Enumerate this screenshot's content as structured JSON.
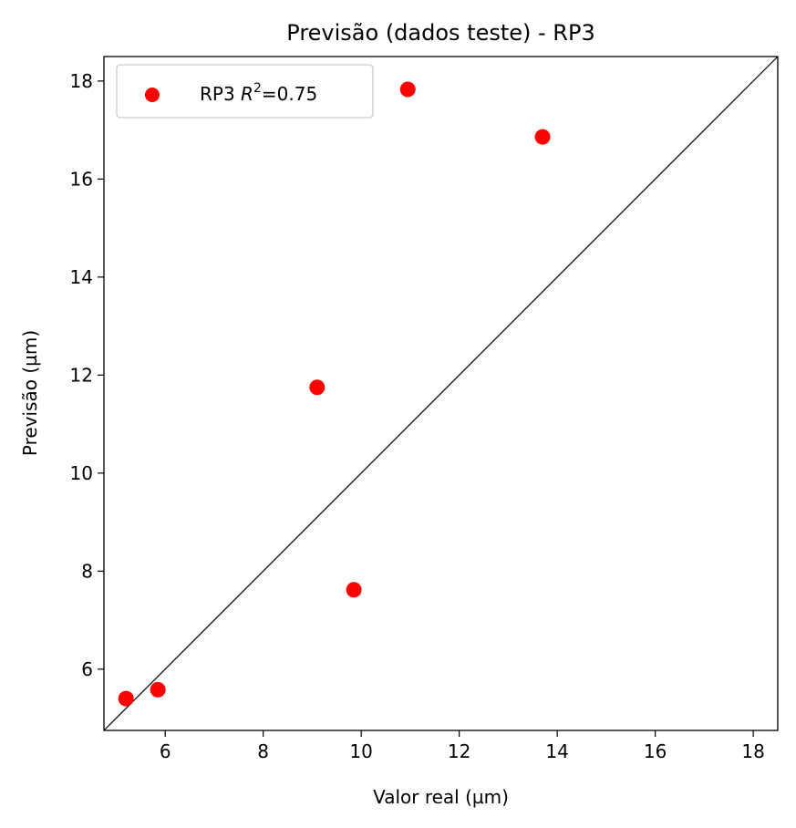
{
  "chart_data": {
    "type": "scatter",
    "title": "Previsão (dados teste) - RP3",
    "xlabel": "Valor real (µm)",
    "ylabel": "Previsão (µm)",
    "xlim": [
      4.75,
      18.5
    ],
    "ylim": [
      4.75,
      18.5
    ],
    "xticks": [
      6,
      8,
      10,
      12,
      14,
      16,
      18
    ],
    "yticks": [
      6,
      8,
      10,
      12,
      14,
      16,
      18
    ],
    "grid": false,
    "legend_position": "upper-left",
    "reference_line": "y = x",
    "series": [
      {
        "name": "RP3",
        "r2_label": "0.75",
        "color": "#ff0000",
        "points": [
          {
            "x": 5.2,
            "y": 5.4
          },
          {
            "x": 5.85,
            "y": 5.58
          },
          {
            "x": 9.1,
            "y": 11.75
          },
          {
            "x": 9.85,
            "y": 7.62
          },
          {
            "x": 10.95,
            "y": 17.83
          },
          {
            "x": 13.7,
            "y": 16.86
          }
        ]
      }
    ]
  }
}
